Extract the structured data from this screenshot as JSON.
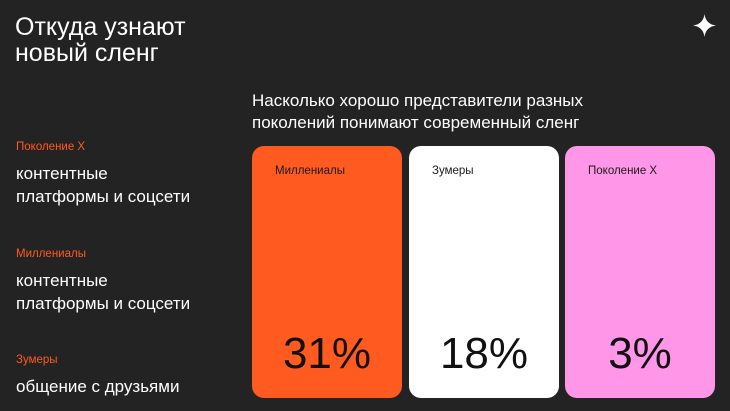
{
  "header": {
    "title_line1": "Откуда узнают",
    "title_line2": "новый сленг",
    "icon": "sparkle-star-icon"
  },
  "sources": [
    {
      "group": "Поколение Х",
      "text": "контентные\nплатформы и соцсети"
    },
    {
      "group": "Миллениалы",
      "text": "контентные\nплатформы и соцсети"
    },
    {
      "group": "Зумеры",
      "text": "общение с друзьями"
    }
  ],
  "colors": {
    "background": "#232323",
    "accent_label": "#ff5a1f",
    "millennials": "#ff5a1f",
    "zoomers": "#ffffff",
    "gen_x": "#ff96e8"
  },
  "chart_data": {
    "type": "bar",
    "title_line1": "Насколько хорошо представители разных",
    "title_line2": "поколений понимают современный сленг",
    "categories": [
      "Миллениалы",
      "Зумеры",
      "Поколение Х"
    ],
    "values": [
      31,
      18,
      3
    ],
    "value_labels": [
      "31%",
      "18%",
      "3%"
    ],
    "unit": "%"
  }
}
